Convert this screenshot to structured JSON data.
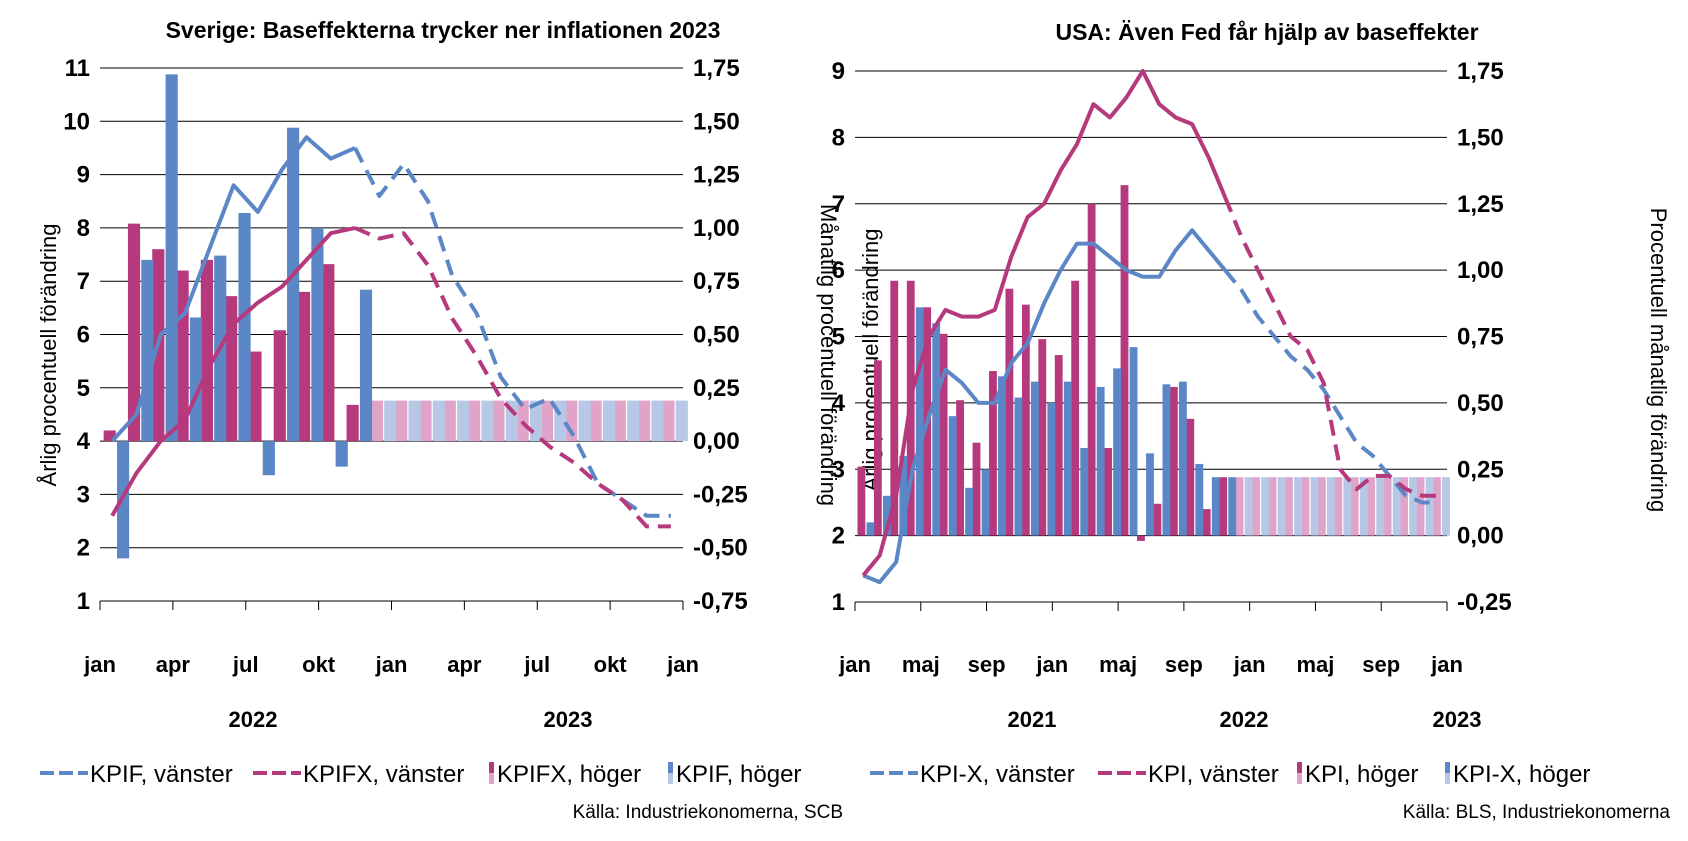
{
  "colors": {
    "blue": "#5b87c7",
    "magenta": "#b5397c",
    "blue_light": "#b7c7e6",
    "magenta_light": "#e0a4c9"
  },
  "charts": {
    "left": {
      "title": "Sverige: Baseffekterna trycker ner inflationen 2023",
      "ylabel_left": "Årlig procentuell förändring",
      "ylabel_right": "Månatlig procentuell förändring",
      "left_ticks": [
        "11",
        "10",
        "9",
        "8",
        "7",
        "6",
        "5",
        "4",
        "3",
        "2",
        "1"
      ],
      "right_ticks": [
        "1,75",
        "1,50",
        "1,25",
        "1,00",
        "0,75",
        "0,50",
        "0,25",
        "0,00",
        "-0,25",
        "-0,50",
        "-0,75"
      ],
      "x_ticks": [
        "jan",
        "apr",
        "jul",
        "okt",
        "jan",
        "apr",
        "jul",
        "okt",
        "jan"
      ],
      "years": [
        "2022",
        "2023"
      ],
      "legend": [
        "KPIF, vänster",
        "KPIFX, vänster",
        "KPIFX, höger",
        "KPIF, höger"
      ],
      "source": "Källa: Industriekonomerna, SCB"
    },
    "right": {
      "title": "USA: Även Fed får hjälp av baseffekter",
      "ylabel_left": "Årlig procentuell förändring",
      "ylabel_right": "Procentuell månatlig förändring",
      "left_ticks": [
        "9",
        "8",
        "7",
        "6",
        "5",
        "4",
        "3",
        "2",
        "1"
      ],
      "right_ticks": [
        "1,75",
        "1,50",
        "1,25",
        "1,00",
        "0,75",
        "0,50",
        "0,25",
        "0,00",
        "-0,25"
      ],
      "x_ticks": [
        "jan",
        "maj",
        "sep",
        "jan",
        "maj",
        "sep",
        "jan",
        "maj",
        "sep",
        "jan"
      ],
      "years": [
        "2021",
        "2022",
        "2023"
      ],
      "legend": [
        "KPI-X, vänster",
        "KPI, vänster",
        "KPI, höger",
        "KPI-X, höger"
      ],
      "source": "Källa: BLS, Industriekonomerna"
    }
  },
  "chart_data": [
    {
      "type": "bar",
      "title": "Sverige: Baseffekterna trycker ner inflationen 2023",
      "xlabel": "",
      "ylabel": "Årlig procentuell förändring",
      "ylabel_right": "Månatlig procentuell förändring",
      "x_range": [
        "2022-01",
        "2023-12"
      ],
      "ylim": [
        1,
        11
      ],
      "ylim_right": [
        -0.75,
        1.75
      ],
      "legend_position": "bottom",
      "categories": [
        "jan 2022",
        "feb 2022",
        "mar 2022",
        "apr 2022",
        "maj 2022",
        "jun 2022",
        "jul 2022",
        "aug 2022",
        "sep 2022",
        "okt 2022",
        "nov 2022",
        "dec 2022",
        "jan 2023",
        "feb 2023",
        "mar 2023",
        "apr 2023",
        "maj 2023",
        "jun 2023",
        "jul 2023",
        "aug 2023",
        "sep 2023",
        "okt 2023",
        "nov 2023",
        "dec 2023"
      ],
      "series": [
        {
          "name": "KPIFX, höger",
          "axis": "right",
          "kind": "bar",
          "values": [
            0.05,
            1.02,
            0.9,
            0.8,
            0.85,
            0.68,
            0.42,
            0.52,
            0.7,
            0.83,
            0.17,
            0.19,
            0.19,
            0.19,
            0.19,
            0.19,
            0.19,
            0.19,
            0.19,
            0.19,
            0.19,
            0.19,
            0.19,
            0.19
          ]
        },
        {
          "name": "KPIF, höger",
          "axis": "right",
          "kind": "bar",
          "values": [
            -0.55,
            0.85,
            1.72,
            0.58,
            0.87,
            1.07,
            -0.16,
            1.47,
            1.0,
            -0.12,
            0.71,
            0.19,
            0.19,
            0.19,
            0.19,
            0.19,
            0.19,
            0.19,
            0.19,
            0.19,
            0.19,
            0.19,
            0.19,
            0.19
          ]
        },
        {
          "name": "KPIF, vänster",
          "axis": "left",
          "kind": "line",
          "forecast_from": "nov 2022",
          "values": [
            4.0,
            4.5,
            6.0,
            6.4,
            7.6,
            8.8,
            8.3,
            9.1,
            9.7,
            9.3,
            9.5,
            8.6,
            9.2,
            8.5,
            7.1,
            6.4,
            5.2,
            4.6,
            4.8,
            4.1,
            3.2,
            2.9,
            2.6,
            2.6
          ]
        },
        {
          "name": "KPIFX, vänster",
          "axis": "left",
          "kind": "line",
          "forecast_from": "nov 2022",
          "values": [
            2.6,
            3.4,
            4.0,
            4.4,
            5.4,
            6.2,
            6.6,
            6.9,
            7.4,
            7.9,
            8.0,
            7.8,
            7.9,
            7.3,
            6.3,
            5.6,
            4.8,
            4.3,
            3.9,
            3.6,
            3.2,
            2.9,
            2.4,
            2.4
          ]
        }
      ]
    },
    {
      "type": "bar",
      "title": "USA: Även Fed får hjälp av baseffekter",
      "xlabel": "",
      "ylabel": "Årlig procentuell förändring",
      "ylabel_right": "Procentuell månatlig förändring",
      "x_range": [
        "2021-01",
        "2023-12"
      ],
      "ylim": [
        1,
        9
      ],
      "ylim_right": [
        -0.25,
        1.75
      ],
      "legend_position": "bottom",
      "categories": [
        "jan 2021",
        "feb 2021",
        "mar 2021",
        "apr 2021",
        "maj 2021",
        "jun 2021",
        "jul 2021",
        "aug 2021",
        "sep 2021",
        "okt 2021",
        "nov 2021",
        "dec 2021",
        "jan 2022",
        "feb 2022",
        "mar 2022",
        "apr 2022",
        "maj 2022",
        "jun 2022",
        "jul 2022",
        "aug 2022",
        "sep 2022",
        "okt 2022",
        "nov 2022",
        "dec 2022",
        "jan 2023",
        "feb 2023",
        "mar 2023",
        "apr 2023",
        "maj 2023",
        "jun 2023",
        "jul 2023",
        "aug 2023",
        "sep 2023",
        "okt 2023",
        "nov 2023",
        "dec 2023"
      ],
      "series": [
        {
          "name": "KPI, höger",
          "axis": "right",
          "kind": "bar",
          "values": [
            0.26,
            0.66,
            0.96,
            0.96,
            0.86,
            0.76,
            0.51,
            0.35,
            0.62,
            0.93,
            0.87,
            0.74,
            0.68,
            0.96,
            1.25,
            0.33,
            1.32,
            -0.02,
            0.12,
            0.56,
            0.44,
            0.1,
            0.22,
            0.22,
            0.22,
            0.22,
            0.22,
            0.22,
            0.22,
            0.22,
            0.22,
            0.22,
            0.22,
            0.22,
            0.22,
            0.22
          ]
        },
        {
          "name": "KPI-X, höger",
          "axis": "right",
          "kind": "bar",
          "values": [
            0.05,
            0.15,
            0.3,
            0.86,
            0.8,
            0.45,
            0.18,
            0.25,
            0.6,
            0.52,
            0.58,
            0.5,
            0.58,
            0.33,
            0.56,
            0.63,
            0.71,
            0.31,
            0.57,
            0.58,
            0.27,
            0.22,
            0.22,
            0.22,
            0.22,
            0.22,
            0.22,
            0.22,
            0.22,
            0.22,
            0.22,
            0.22,
            0.22,
            0.22,
            0.22,
            0.22
          ]
        },
        {
          "name": "KPI-X, vänster",
          "axis": "left",
          "kind": "line",
          "forecast_from": "nov 2022",
          "values": [
            1.4,
            1.3,
            1.6,
            3.0,
            3.8,
            4.5,
            4.3,
            4.0,
            4.0,
            4.6,
            4.9,
            5.5,
            6.0,
            6.4,
            6.4,
            6.2,
            6.0,
            5.9,
            5.9,
            6.3,
            6.6,
            6.3,
            6.0,
            5.7,
            5.3,
            5.0,
            4.7,
            4.5,
            4.2,
            3.8,
            3.4,
            3.2,
            2.9,
            2.6,
            2.5,
            2.5
          ]
        },
        {
          "name": "KPI, vänster",
          "axis": "left",
          "kind": "line",
          "forecast_from": "nov 2022",
          "values": [
            1.4,
            1.7,
            2.6,
            4.2,
            5.0,
            5.4,
            5.3,
            5.3,
            5.4,
            6.2,
            6.8,
            7.0,
            7.5,
            7.9,
            8.5,
            8.3,
            8.6,
            9.0,
            8.5,
            8.3,
            8.2,
            7.7,
            7.1,
            6.5,
            6.0,
            5.5,
            5.0,
            4.8,
            4.3,
            3.0,
            2.7,
            2.9,
            2.9,
            2.7,
            2.6,
            2.6
          ]
        }
      ]
    }
  ]
}
